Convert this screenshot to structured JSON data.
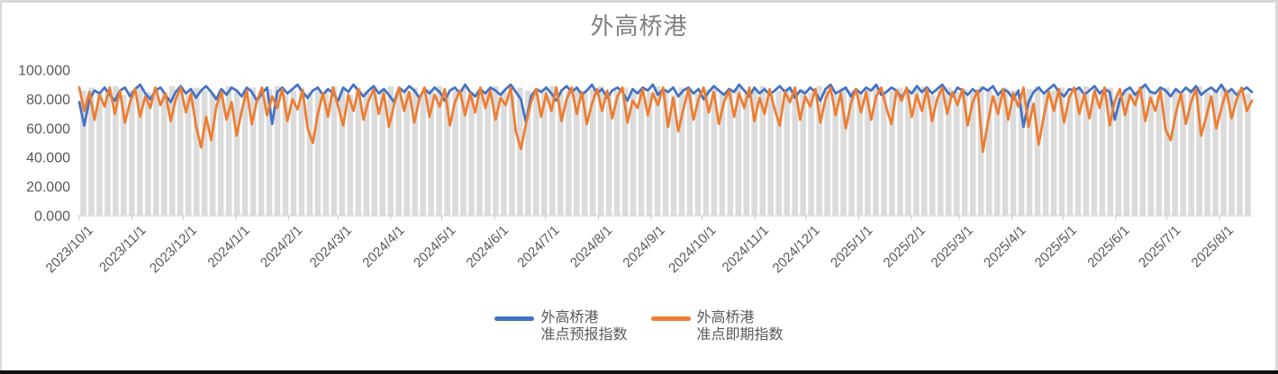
{
  "title": "外高桥港",
  "colors": {
    "forecast_line": "#4472C4",
    "spot_line": "#ED7D31",
    "background_bar": "#DBDBDB",
    "axis_line": "#D9D9D9",
    "axis_text": "#595959",
    "title_text": "#7F7F7F"
  },
  "legend": {
    "items": [
      {
        "line1": "外高桥港",
        "line2": "准点预报指数",
        "color": "#4472C4"
      },
      {
        "line1": "外高桥港",
        "line2": "准点即期指数",
        "color": "#ED7D31"
      }
    ]
  },
  "chart_data": {
    "type": "line",
    "title": "外高桥港",
    "x_domain": [
      "2023/10/1",
      "2025/8/20"
    ],
    "x_tick_labels": [
      "2023/10/1",
      "2023/11/1",
      "2023/12/1",
      "2024/1/1",
      "2024/2/1",
      "2024/3/1",
      "2024/4/1",
      "2024/5/1",
      "2024/6/1",
      "2024/7/1",
      "2024/8/1",
      "2024/9/1",
      "2024/10/1",
      "2024/11/1",
      "2024/12/1",
      "2025/1/1",
      "2025/2/1",
      "2025/3/1",
      "2025/4/1",
      "2025/5/1",
      "2025/6/1",
      "2025/7/1",
      "2025/8/1"
    ],
    "ylim": [
      0,
      100
    ],
    "y_tick_labels": [
      "0.000",
      "20.000",
      "40.000",
      "60.000",
      "80.000",
      "100.000"
    ],
    "grid": false,
    "legend_position": "bottom",
    "series": [
      {
        "name": "外高桥港准点预报指数",
        "type": "line",
        "color": "#4472C4",
        "values": [
          78,
          62,
          80,
          86,
          84,
          88,
          83,
          79,
          86,
          88,
          82,
          87,
          90,
          84,
          80,
          86,
          88,
          83,
          78,
          85,
          89,
          84,
          87,
          81,
          86,
          89,
          85,
          80,
          87,
          83,
          88,
          86,
          82,
          88,
          85,
          79,
          84,
          88,
          63,
          85,
          88,
          84,
          87,
          90,
          85,
          81,
          86,
          88,
          83,
          87,
          84,
          79,
          88,
          85,
          90,
          86,
          82,
          86,
          89,
          84,
          87,
          83,
          78,
          88,
          85,
          89,
          86,
          81,
          87,
          84,
          88,
          85,
          79,
          86,
          88,
          84,
          90,
          85,
          82,
          87,
          84,
          88,
          86,
          83,
          87,
          90,
          85,
          80,
          64,
          82,
          87,
          85,
          88,
          84,
          79,
          86,
          89,
          85,
          88,
          83,
          86,
          90,
          84,
          87,
          81,
          86,
          88,
          85,
          79,
          87,
          84,
          88,
          86,
          90,
          83,
          87,
          85,
          88,
          82,
          86,
          88,
          84,
          87,
          80,
          85,
          89,
          86,
          83,
          87,
          85,
          90,
          86,
          82,
          88,
          84,
          87,
          83,
          86,
          89,
          85,
          88,
          81,
          86,
          84,
          88,
          85,
          79,
          87,
          90,
          84,
          86,
          88,
          82,
          87,
          84,
          88,
          86,
          90,
          83,
          85,
          88,
          86,
          81,
          87,
          84,
          89,
          85,
          88,
          84,
          87,
          90,
          85,
          82,
          88,
          86,
          83,
          87,
          84,
          88,
          86,
          89,
          83,
          87,
          85,
          80,
          86,
          61,
          78,
          85,
          88,
          84,
          87,
          90,
          85,
          82,
          87,
          86,
          88,
          83,
          86,
          89,
          84,
          87,
          85,
          66,
          80,
          86,
          88,
          83,
          87,
          90,
          85,
          84,
          88,
          86,
          82,
          87,
          84,
          88,
          85,
          89,
          83,
          86,
          88,
          85,
          90,
          84,
          87,
          83,
          86,
          88,
          85
        ]
      },
      {
        "name": "外高桥港准点即期指数",
        "type": "line",
        "color": "#ED7D31",
        "values": [
          88,
          72,
          85,
          66,
          83,
          75,
          88,
          70,
          86,
          64,
          78,
          87,
          68,
          82,
          74,
          88,
          76,
          84,
          65,
          80,
          88,
          71,
          84,
          62,
          47,
          68,
          52,
          75,
          85,
          66,
          78,
          55,
          72,
          86,
          63,
          79,
          88,
          69,
          82,
          74,
          87,
          65,
          80,
          73,
          86,
          60,
          50,
          70,
          84,
          68,
          88,
          75,
          62,
          83,
          72,
          87,
          66,
          79,
          87,
          70,
          84,
          61,
          76,
          88,
          72,
          85,
          64,
          80,
          88,
          68,
          83,
          75,
          87,
          62,
          78,
          86,
          69,
          84,
          71,
          88,
          74,
          86,
          66,
          81,
          76,
          88,
          58,
          46,
          63,
          78,
          87,
          68,
          84,
          72,
          88,
          65,
          80,
          88,
          70,
          85,
          63,
          77,
          87,
          72,
          86,
          67,
          82,
          88,
          64,
          79,
          74,
          87,
          69,
          84,
          76,
          88,
          61,
          81,
          58,
          73,
          87,
          66,
          80,
          88,
          71,
          85,
          63,
          78,
          86,
          68,
          84,
          74,
          88,
          65,
          81,
          70,
          87,
          73,
          62,
          85,
          78,
          88,
          66,
          82,
          75,
          87,
          64,
          80,
          88,
          69,
          84,
          60,
          77,
          87,
          71,
          85,
          66,
          82,
          88,
          74,
          63,
          86,
          79,
          88,
          68,
          83,
          72,
          87,
          65,
          80,
          88,
          70,
          85,
          76,
          87,
          62,
          78,
          86,
          44,
          64,
          82,
          70,
          87,
          66,
          84,
          75,
          88,
          61,
          77,
          49,
          68,
          85,
          72,
          87,
          64,
          81,
          88,
          70,
          84,
          67,
          86,
          74,
          88,
          62,
          79,
          87,
          69,
          83,
          76,
          88,
          65,
          81,
          72,
          86,
          59,
          52,
          70,
          84,
          63,
          78,
          87,
          55,
          68,
          82,
          60,
          74,
          86,
          67,
          80,
          88,
          72,
          79
        ]
      },
      {
        "name": "background-bars",
        "type": "bar",
        "color": "#DBDBDB",
        "values": [
          86,
          88,
          84,
          87,
          89,
          83,
          86,
          88,
          85,
          87,
          85,
          89,
          86,
          83,
          88,
          86,
          84,
          87,
          89,
          85,
          86,
          88,
          84,
          87,
          89,
          83,
          86,
          88,
          85,
          87,
          85,
          89,
          86,
          83,
          88,
          86,
          84,
          87,
          89,
          85,
          86,
          88,
          84,
          87,
          89,
          83,
          86,
          88,
          85,
          87,
          85,
          89,
          86,
          83,
          88,
          86,
          84,
          87,
          89,
          85,
          86,
          88,
          84,
          87,
          89,
          83,
          86,
          88,
          85,
          87,
          85,
          89,
          86,
          83,
          88,
          86,
          84,
          87,
          89,
          85,
          86,
          88,
          84,
          87,
          89,
          83,
          86,
          88,
          85,
          87,
          85,
          89,
          86,
          83,
          88,
          86,
          84,
          87,
          89,
          85,
          86,
          88,
          84,
          87,
          89,
          83,
          86,
          88,
          85,
          87,
          85,
          89,
          86,
          83,
          88,
          86,
          84,
          87,
          89,
          85,
          86,
          88,
          84,
          87,
          89,
          83,
          86,
          88,
          85,
          87,
          85,
          89,
          86,
          83,
          88,
          86,
          84,
          87,
          89,
          85,
          86,
          88,
          85,
          87,
          84
        ]
      }
    ]
  }
}
